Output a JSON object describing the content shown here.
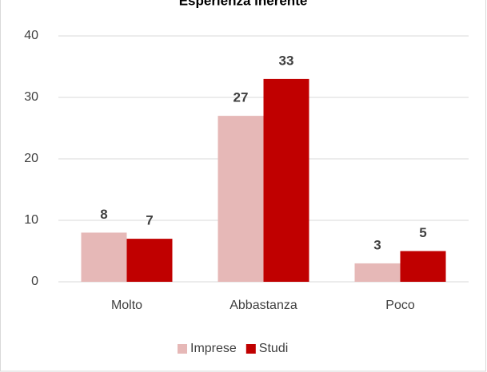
{
  "chart_data": {
    "type": "bar",
    "title": "Esperienza inerente",
    "categories": [
      "Molto",
      "Abbastanza",
      "Poco"
    ],
    "series": [
      {
        "name": "Imprese",
        "color": "#e6b8b7",
        "values": [
          8,
          27,
          3
        ]
      },
      {
        "name": "Studi",
        "color": "#c00000",
        "values": [
          7,
          33,
          5
        ]
      }
    ],
    "ylim": [
      0,
      40
    ],
    "yticks": [
      0,
      10,
      20,
      30,
      40
    ],
    "grid": true,
    "legend": "bottom"
  }
}
